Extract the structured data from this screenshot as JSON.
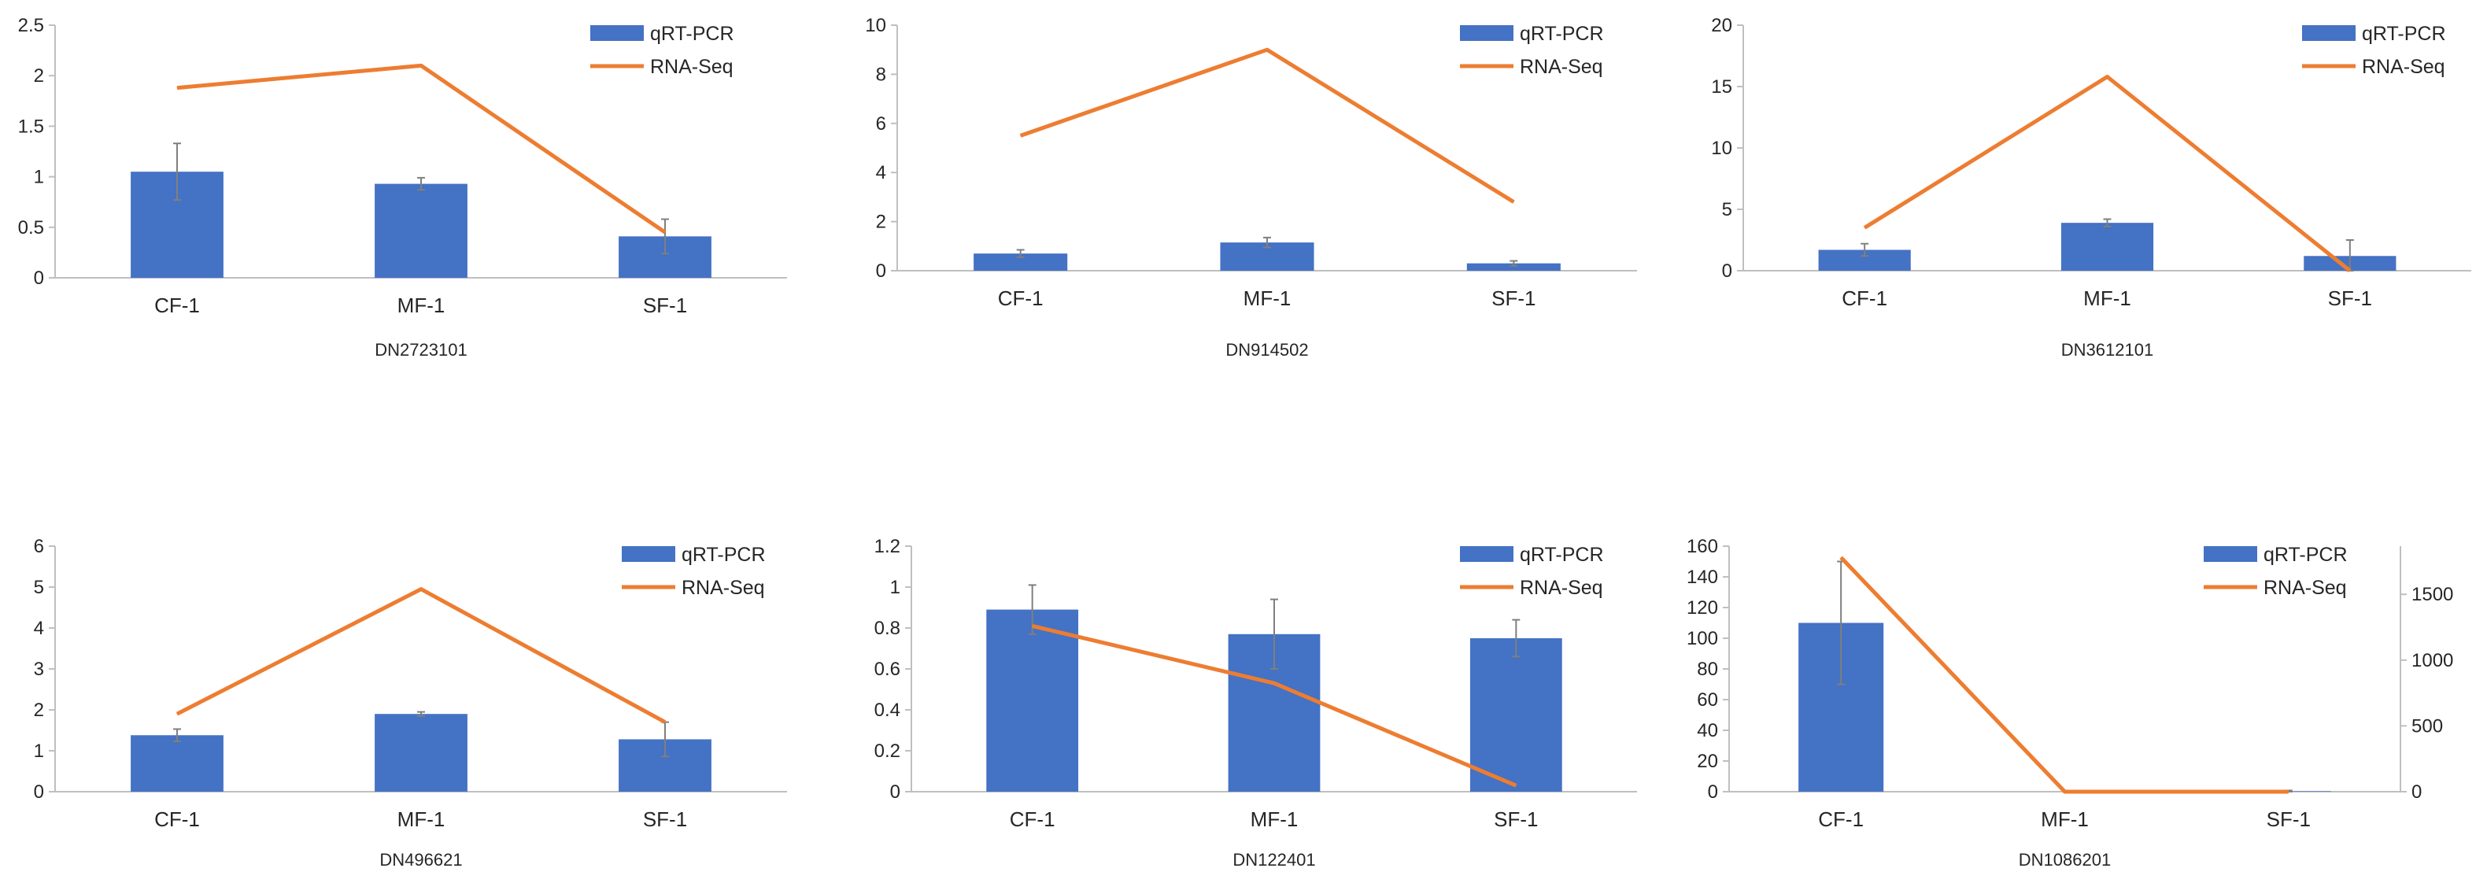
{
  "colors": {
    "bar": "#4472C4",
    "line": "#ED7D31",
    "axis": "#BFBFBF",
    "errorbar": "#7F7F7F",
    "text": "#262626"
  },
  "chart_data": [
    {
      "type": "bar+line",
      "title": "DN2723101",
      "categories": [
        "CF-1",
        "MF-1",
        "SF-1"
      ],
      "series": [
        {
          "name": "qRT-PCR",
          "kind": "bar",
          "values": [
            1.05,
            0.93,
            0.41
          ],
          "errors": [
            0.28,
            0.06,
            0.17
          ]
        },
        {
          "name": "RNA-Seq",
          "kind": "line",
          "values": [
            1.88,
            2.1,
            0.45
          ]
        }
      ],
      "ylim": [
        0,
        2.5
      ],
      "yticks": [
        0,
        0.5,
        1,
        1.5,
        2,
        2.5
      ],
      "ytick_labels": [
        "0",
        "0.5",
        "1",
        "1.5",
        "2",
        "2.5"
      ]
    },
    {
      "type": "bar+line",
      "title": "DN914502",
      "categories": [
        "CF-1",
        "MF-1",
        "SF-1"
      ],
      "series": [
        {
          "name": "qRT-PCR",
          "kind": "bar",
          "values": [
            0.7,
            1.15,
            0.3
          ],
          "errors": [
            0.15,
            0.2,
            0.1
          ]
        },
        {
          "name": "RNA-Seq",
          "kind": "line",
          "values": [
            5.5,
            9.0,
            2.8
          ]
        }
      ],
      "ylim": [
        0,
        10
      ],
      "yticks": [
        0,
        2,
        4,
        6,
        8,
        10
      ],
      "ytick_labels": [
        "0",
        "2",
        "4",
        "6",
        "8",
        "10"
      ]
    },
    {
      "type": "bar+line",
      "title": "DN3612101",
      "categories": [
        "CF-1",
        "MF-1",
        "SF-1"
      ],
      "series": [
        {
          "name": "qRT-PCR",
          "kind": "bar",
          "values": [
            1.7,
            3.9,
            1.2
          ],
          "errors": [
            0.5,
            0.3,
            1.3
          ]
        },
        {
          "name": "RNA-Seq",
          "kind": "line",
          "values": [
            3.5,
            15.8,
            0.0
          ]
        }
      ],
      "ylim": [
        0,
        20
      ],
      "yticks": [
        0,
        5,
        10,
        15,
        20
      ],
      "ytick_labels": [
        "0",
        "5",
        "10",
        "15",
        "20"
      ]
    },
    {
      "type": "bar+line",
      "title": "DN496621",
      "categories": [
        "CF-1",
        "MF-1",
        "SF-1"
      ],
      "series": [
        {
          "name": "qRT-PCR",
          "kind": "bar",
          "values": [
            1.38,
            1.9,
            1.28
          ],
          "errors": [
            0.15,
            0.05,
            0.42
          ]
        },
        {
          "name": "RNA-Seq",
          "kind": "line",
          "values": [
            1.9,
            4.95,
            1.7
          ]
        }
      ],
      "ylim": [
        0,
        6
      ],
      "yticks": [
        0,
        1,
        2,
        3,
        4,
        5,
        6
      ],
      "ytick_labels": [
        "0",
        "1",
        "2",
        "3",
        "4",
        "5",
        "6"
      ]
    },
    {
      "type": "bar+line",
      "title": "DN122401",
      "categories": [
        "CF-1",
        "MF-1",
        "SF-1"
      ],
      "series": [
        {
          "name": "qRT-PCR",
          "kind": "bar",
          "values": [
            0.89,
            0.77,
            0.75
          ],
          "errors": [
            0.12,
            0.17,
            0.09
          ]
        },
        {
          "name": "RNA-Seq",
          "kind": "line",
          "values": [
            0.81,
            0.53,
            0.03
          ]
        }
      ],
      "ylim": [
        0,
        1.2
      ],
      "yticks": [
        0,
        0.2,
        0.4,
        0.6,
        0.8,
        1,
        1.2
      ],
      "ytick_labels": [
        "0",
        "0.2",
        "0.4",
        "0.6",
        "0.8",
        "1",
        "1.2"
      ]
    },
    {
      "type": "bar+line",
      "title": "DN1086201",
      "categories": [
        "CF-1",
        "MF-1",
        "SF-1"
      ],
      "series": [
        {
          "name": "qRT-PCR",
          "kind": "bar",
          "values": [
            110,
            0,
            0.3
          ],
          "errors": [
            40,
            0,
            0.5
          ]
        },
        {
          "name": "RNA-Seq",
          "kind": "line",
          "axis": "right",
          "values": [
            1780,
            0,
            0
          ]
        }
      ],
      "ylim": [
        0,
        160
      ],
      "yticks": [
        0,
        20,
        40,
        60,
        80,
        100,
        120,
        140,
        160
      ],
      "ytick_labels": [
        "0",
        "20",
        "40",
        "60",
        "80",
        "100",
        "120",
        "140",
        "160"
      ],
      "y2lim": [
        0,
        1866
      ],
      "y2ticks": [
        0,
        500,
        1000,
        1500
      ],
      "y2tick_labels": [
        "0",
        "500",
        "1000",
        "1500"
      ]
    }
  ]
}
